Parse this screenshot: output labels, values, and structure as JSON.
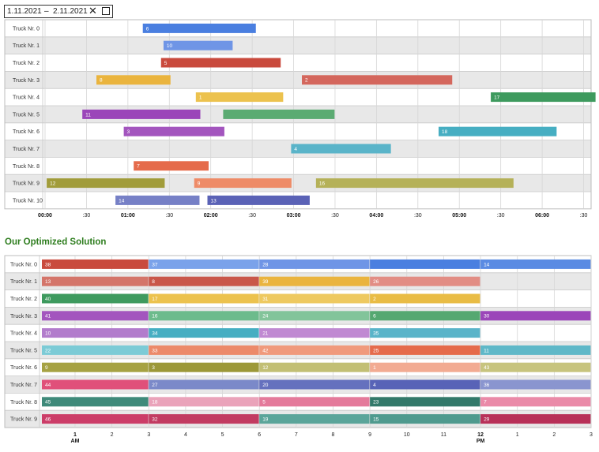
{
  "date_range": {
    "from": "1.11.2021",
    "separator": "–",
    "to": "2.11.2021",
    "clear_icon": "close-icon",
    "calendar_icon": "calendar-icon"
  },
  "title2": "Our Optimized Solution",
  "chart_data": [
    {
      "type": "timeline",
      "title": "",
      "x_unit": "hours from 00:00",
      "xlim": [
        0,
        6.5
      ],
      "ticks": [
        {
          "v": 0,
          "t": "00:00",
          "bold": true
        },
        {
          "v": 0.5,
          "t": ":30",
          "bold": false
        },
        {
          "v": 1,
          "t": "01:00",
          "bold": true
        },
        {
          "v": 1.5,
          "t": ":30",
          "bold": false
        },
        {
          "v": 2,
          "t": "02:00",
          "bold": true
        },
        {
          "v": 2.5,
          "t": ":30",
          "bold": false
        },
        {
          "v": 3,
          "t": "03:00",
          "bold": true
        },
        {
          "v": 3.5,
          "t": ":30",
          "bold": false
        },
        {
          "v": 4,
          "t": "04:00",
          "bold": true
        },
        {
          "v": 4.5,
          "t": ":30",
          "bold": false
        },
        {
          "v": 5,
          "t": "05:00",
          "bold": true
        },
        {
          "v": 5.5,
          "t": ":30",
          "bold": false
        },
        {
          "v": 6,
          "t": "06:00",
          "bold": true
        },
        {
          "v": 6.5,
          "t": ":30",
          "bold": false
        }
      ],
      "rows": [
        "Truck Nr. 0",
        "Truck Nr. 1",
        "Truck Nr. 2",
        "Truck Nr. 3",
        "Truck Nr. 4",
        "Truck Nr. 5",
        "Truck Nr. 6",
        "Truck Nr. 7",
        "Truck Nr. 8",
        "Truck Nr. 9",
        "Truck Nr. 10"
      ],
      "bars": [
        {
          "row": 0,
          "label": "6",
          "start": 1.18,
          "end": 2.55,
          "color": "#4a7fe0"
        },
        {
          "row": 1,
          "label": "10",
          "start": 1.43,
          "end": 2.27,
          "color": "#6f95e6"
        },
        {
          "row": 2,
          "label": "5",
          "start": 1.4,
          "end": 2.85,
          "color": "#c94a3d"
        },
        {
          "row": 3,
          "label": "8",
          "start": 0.62,
          "end": 1.52,
          "color": "#eab43e"
        },
        {
          "row": 3,
          "label": "2",
          "start": 3.1,
          "end": 4.92,
          "color": "#d4675d"
        },
        {
          "row": 4,
          "label": "1",
          "start": 1.82,
          "end": 2.88,
          "color": "#ecc24e"
        },
        {
          "row": 4,
          "label": "17",
          "start": 5.38,
          "end": 6.65,
          "color": "#3e9a5e"
        },
        {
          "row": 5,
          "label": "11",
          "start": 0.45,
          "end": 1.88,
          "color": "#9b45b9"
        },
        {
          "row": 5,
          "label": "",
          "start": 2.15,
          "end": 3.5,
          "color": "#5bab72"
        },
        {
          "row": 6,
          "label": "3",
          "start": 0.95,
          "end": 2.17,
          "color": "#a355be"
        },
        {
          "row": 6,
          "label": "18",
          "start": 4.75,
          "end": 6.18,
          "color": "#46aec2"
        },
        {
          "row": 7,
          "label": "4",
          "start": 2.97,
          "end": 4.18,
          "color": "#5ab4c9"
        },
        {
          "row": 8,
          "label": "7",
          "start": 1.07,
          "end": 1.98,
          "color": "#e56b4b"
        },
        {
          "row": 9,
          "label": "12",
          "start": 0.02,
          "end": 1.45,
          "color": "#a19c3a"
        },
        {
          "row": 9,
          "label": "9",
          "start": 1.8,
          "end": 2.98,
          "color": "#ee8b67"
        },
        {
          "row": 9,
          "label": "16",
          "start": 3.27,
          "end": 5.66,
          "color": "#b5b158"
        },
        {
          "row": 10,
          "label": "14",
          "start": 0.85,
          "end": 1.87,
          "color": "#7680c6"
        },
        {
          "row": 10,
          "label": "13",
          "start": 1.96,
          "end": 3.2,
          "color": "#5a62b6"
        }
      ]
    },
    {
      "type": "timeline",
      "title": "Our Optimized Solution",
      "x_unit": "hours from midnight",
      "xlim": [
        0.1,
        15
      ],
      "ticks": [
        {
          "v": 1,
          "t": "1",
          "sub": "AM",
          "bold": true
        },
        {
          "v": 2,
          "t": "2",
          "bold": false
        },
        {
          "v": 3,
          "t": "3",
          "bold": false
        },
        {
          "v": 4,
          "t": "4",
          "bold": false
        },
        {
          "v": 5,
          "t": "5",
          "bold": false
        },
        {
          "v": 6,
          "t": "6",
          "bold": false
        },
        {
          "v": 7,
          "t": "7",
          "bold": false
        },
        {
          "v": 8,
          "t": "8",
          "bold": false
        },
        {
          "v": 9,
          "t": "9",
          "bold": false
        },
        {
          "v": 10,
          "t": "10",
          "bold": false
        },
        {
          "v": 11,
          "t": "11",
          "bold": false
        },
        {
          "v": 12,
          "t": "12",
          "sub": "PM",
          "bold": true
        },
        {
          "v": 13,
          "t": "1",
          "bold": false
        },
        {
          "v": 14,
          "t": "2",
          "bold": false
        },
        {
          "v": 15,
          "t": "3",
          "bold": false
        }
      ],
      "rows": [
        "Truck Nr. 0",
        "Truck Nr. 1",
        "Truck Nr. 2",
        "Truck Nr. 3",
        "Truck Nr. 4",
        "Truck Nr. 5",
        "Truck Nr. 6",
        "Truck Nr. 7",
        "Truck Nr. 8",
        "Truck Nr. 9"
      ],
      "bars": [
        {
          "row": 0,
          "label": "38",
          "start": 0.1,
          "end": 3,
          "color": "#c94a3d"
        },
        {
          "row": 0,
          "label": "37",
          "start": 3,
          "end": 6,
          "color": "#7aa2ea"
        },
        {
          "row": 0,
          "label": "28",
          "start": 6,
          "end": 9,
          "color": "#6f95e6"
        },
        {
          "row": 0,
          "label": "",
          "start": 9,
          "end": 12,
          "color": "#4a7fe0"
        },
        {
          "row": 0,
          "label": "14",
          "start": 12,
          "end": 15,
          "color": "#5a8be3"
        },
        {
          "row": 1,
          "label": "13",
          "start": 0.1,
          "end": 3,
          "color": "#d4756a"
        },
        {
          "row": 1,
          "label": "8",
          "start": 3,
          "end": 6,
          "color": "#c9574a"
        },
        {
          "row": 1,
          "label": "39",
          "start": 6,
          "end": 9,
          "color": "#eab43e"
        },
        {
          "row": 1,
          "label": "26",
          "start": 9,
          "end": 12,
          "color": "#e28d84"
        },
        {
          "row": 2,
          "label": "40",
          "start": 0.1,
          "end": 3,
          "color": "#3e9a5e"
        },
        {
          "row": 2,
          "label": "17",
          "start": 3,
          "end": 6,
          "color": "#ecc24e"
        },
        {
          "row": 2,
          "label": "31",
          "start": 6,
          "end": 9,
          "color": "#eec960"
        },
        {
          "row": 2,
          "label": "2",
          "start": 9,
          "end": 12,
          "color": "#e9bc45"
        },
        {
          "row": 3,
          "label": "41",
          "start": 0.1,
          "end": 3,
          "color": "#a355be"
        },
        {
          "row": 3,
          "label": "16",
          "start": 3,
          "end": 6,
          "color": "#6cbb8c"
        },
        {
          "row": 3,
          "label": "24",
          "start": 6,
          "end": 9,
          "color": "#82c49a"
        },
        {
          "row": 3,
          "label": "6",
          "start": 9,
          "end": 12,
          "color": "#55a871"
        },
        {
          "row": 3,
          "label": "30",
          "start": 12,
          "end": 15,
          "color": "#9b45b9"
        },
        {
          "row": 4,
          "label": "10",
          "start": 0.1,
          "end": 3,
          "color": "#b27ccc"
        },
        {
          "row": 4,
          "label": "34",
          "start": 3,
          "end": 6,
          "color": "#46aec2"
        },
        {
          "row": 4,
          "label": "21",
          "start": 6,
          "end": 9,
          "color": "#c089d2"
        },
        {
          "row": 4,
          "label": "35",
          "start": 9,
          "end": 12,
          "color": "#5ab4c9"
        },
        {
          "row": 5,
          "label": "22",
          "start": 0.1,
          "end": 3,
          "color": "#7ccbd6"
        },
        {
          "row": 5,
          "label": "33",
          "start": 3,
          "end": 6,
          "color": "#ec8a6a"
        },
        {
          "row": 5,
          "label": "42",
          "start": 6,
          "end": 9,
          "color": "#f09a7c"
        },
        {
          "row": 5,
          "label": "25",
          "start": 9,
          "end": 12,
          "color": "#e56b4b"
        },
        {
          "row": 5,
          "label": "11",
          "start": 12,
          "end": 15,
          "color": "#5fb8c8"
        },
        {
          "row": 6,
          "label": "9",
          "start": 0.1,
          "end": 3,
          "color": "#a6a243"
        },
        {
          "row": 6,
          "label": "3",
          "start": 3,
          "end": 6,
          "color": "#9c9838"
        },
        {
          "row": 6,
          "label": "12",
          "start": 6,
          "end": 9,
          "color": "#c2bf74"
        },
        {
          "row": 6,
          "label": "1",
          "start": 9,
          "end": 12,
          "color": "#f2ab92"
        },
        {
          "row": 6,
          "label": "43",
          "start": 12,
          "end": 15,
          "color": "#c7c47e"
        },
        {
          "row": 7,
          "label": "44",
          "start": 0.1,
          "end": 3,
          "color": "#e0507a"
        },
        {
          "row": 7,
          "label": "27",
          "start": 3,
          "end": 6,
          "color": "#7b89c9"
        },
        {
          "row": 7,
          "label": "20",
          "start": 6,
          "end": 9,
          "color": "#6571be"
        },
        {
          "row": 7,
          "label": "4",
          "start": 9,
          "end": 12,
          "color": "#5863b7"
        },
        {
          "row": 7,
          "label": "36",
          "start": 12,
          "end": 15,
          "color": "#8a95cf"
        },
        {
          "row": 8,
          "label": "45",
          "start": 0.1,
          "end": 3,
          "color": "#3f8a7a"
        },
        {
          "row": 8,
          "label": "18",
          "start": 3,
          "end": 6,
          "color": "#eaa3ba"
        },
        {
          "row": 8,
          "label": "5",
          "start": 6,
          "end": 9,
          "color": "#e47a9b"
        },
        {
          "row": 8,
          "label": "23",
          "start": 9,
          "end": 12,
          "color": "#33796a"
        },
        {
          "row": 8,
          "label": "7",
          "start": 12,
          "end": 15,
          "color": "#ea8aa8"
        },
        {
          "row": 9,
          "label": "46",
          "start": 0.1,
          "end": 3,
          "color": "#cc3d68"
        },
        {
          "row": 9,
          "label": "32",
          "start": 3,
          "end": 6,
          "color": "#c23b61"
        },
        {
          "row": 9,
          "label": "19",
          "start": 6,
          "end": 9,
          "color": "#5ba59a"
        },
        {
          "row": 9,
          "label": "15",
          "start": 9,
          "end": 12,
          "color": "#4f9a8e"
        },
        {
          "row": 9,
          "label": "29",
          "start": 12,
          "end": 15,
          "color": "#b83058"
        }
      ]
    }
  ]
}
